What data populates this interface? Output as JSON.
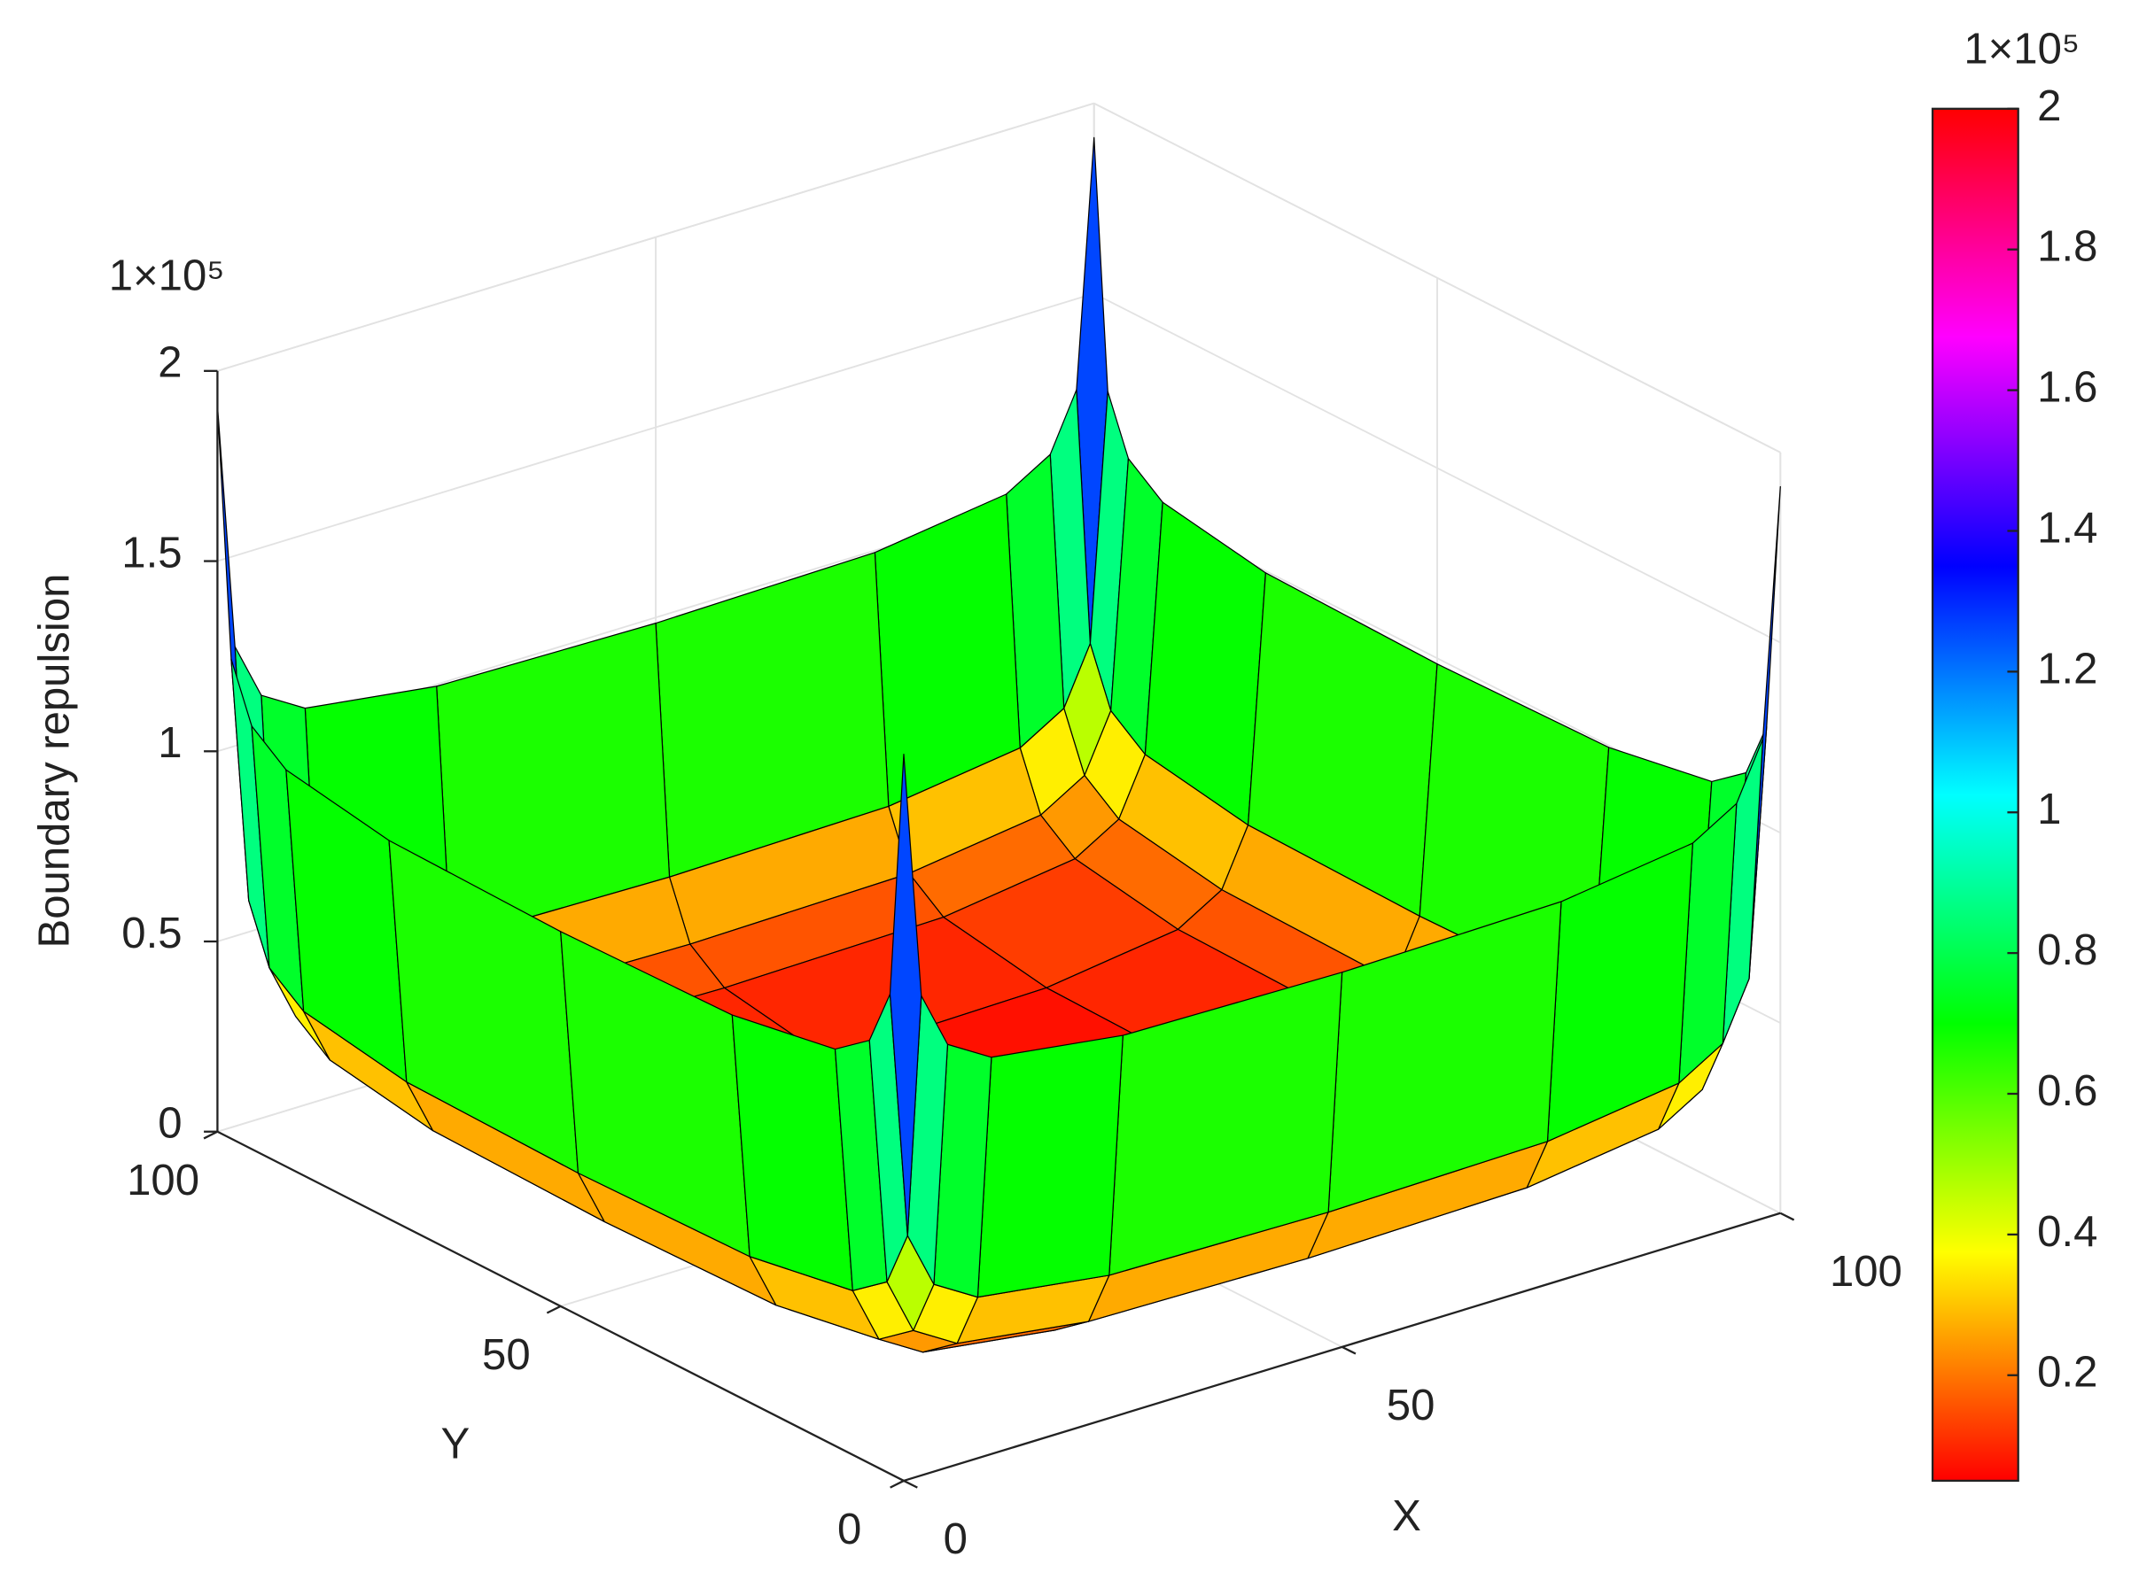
{
  "chart_data": {
    "type": "surface",
    "xlabel": "X",
    "ylabel": "Y",
    "zlabel": "Boundary repulsion",
    "z_exponent": "1×10⁵",
    "colorbar_exponent": "1×10⁵",
    "colormap": "hsv",
    "grid": true,
    "x": [
      0,
      2,
      5,
      10,
      25,
      50,
      75,
      90,
      95,
      98,
      100
    ],
    "y": [
      0,
      2,
      5,
      10,
      25,
      50,
      75,
      90,
      95,
      98,
      100
    ],
    "z": [
      [
        191000,
        126100,
        111200,
        104300,
        99500,
        98500,
        99500,
        104300,
        111200,
        126100,
        191000
      ],
      [
        126100,
        61200,
        46300,
        39400,
        34600,
        33600,
        34600,
        39400,
        46300,
        61200,
        126100
      ],
      [
        111200,
        46300,
        31400,
        24500,
        19700,
        18700,
        19700,
        24500,
        31400,
        46300,
        111200
      ],
      [
        104300,
        39400,
        24500,
        17600,
        12800,
        11800,
        12800,
        17600,
        24500,
        39400,
        104300
      ],
      [
        99500,
        34600,
        19700,
        12800,
        8000,
        7000,
        8000,
        12800,
        19700,
        34600,
        99500
      ],
      [
        98500,
        33600,
        18700,
        11800,
        7000,
        6000,
        7000,
        11800,
        18700,
        33600,
        98500
      ],
      [
        99500,
        34600,
        19700,
        12800,
        8000,
        7000,
        8000,
        12800,
        19700,
        34600,
        99500
      ],
      [
        104300,
        39400,
        24500,
        17600,
        12800,
        11800,
        12800,
        17600,
        24500,
        39400,
        104300
      ],
      [
        111200,
        46300,
        31400,
        24500,
        19700,
        18700,
        19700,
        24500,
        31400,
        46300,
        111200
      ],
      [
        126100,
        61200,
        46300,
        39400,
        34600,
        33600,
        34600,
        39400,
        46300,
        61200,
        126100
      ],
      [
        191000,
        126100,
        111200,
        104300,
        99500,
        98500,
        99500,
        104300,
        111200,
        126100,
        191000
      ]
    ],
    "xlim": [
      0,
      100
    ],
    "ylim": [
      0,
      100
    ],
    "zlim": [
      0,
      200000
    ],
    "xticks": [
      0,
      50,
      100
    ],
    "yticks": [
      0,
      50,
      100
    ],
    "zticks": [
      0,
      {
        "value": 50000,
        "label": "0.5"
      },
      {
        "value": 100000,
        "label": "1"
      },
      {
        "value": 150000,
        "label": "1.5"
      },
      {
        "value": 200000,
        "label": "2"
      }
    ],
    "clim": [
      5000,
      200000
    ],
    "cticks": [
      {
        "value": 20000,
        "label": "0.2"
      },
      {
        "value": 40000,
        "label": "0.4"
      },
      {
        "value": 60000,
        "label": "0.6"
      },
      {
        "value": 80000,
        "label": "0.8"
      },
      {
        "value": 100000,
        "label": "1"
      },
      {
        "value": 120000,
        "label": "1.2"
      },
      {
        "value": 140000,
        "label": "1.4"
      },
      {
        "value": 160000,
        "label": "1.6"
      },
      {
        "value": 180000,
        "label": "1.8"
      },
      {
        "value": 200000,
        "label": "2"
      }
    ]
  }
}
